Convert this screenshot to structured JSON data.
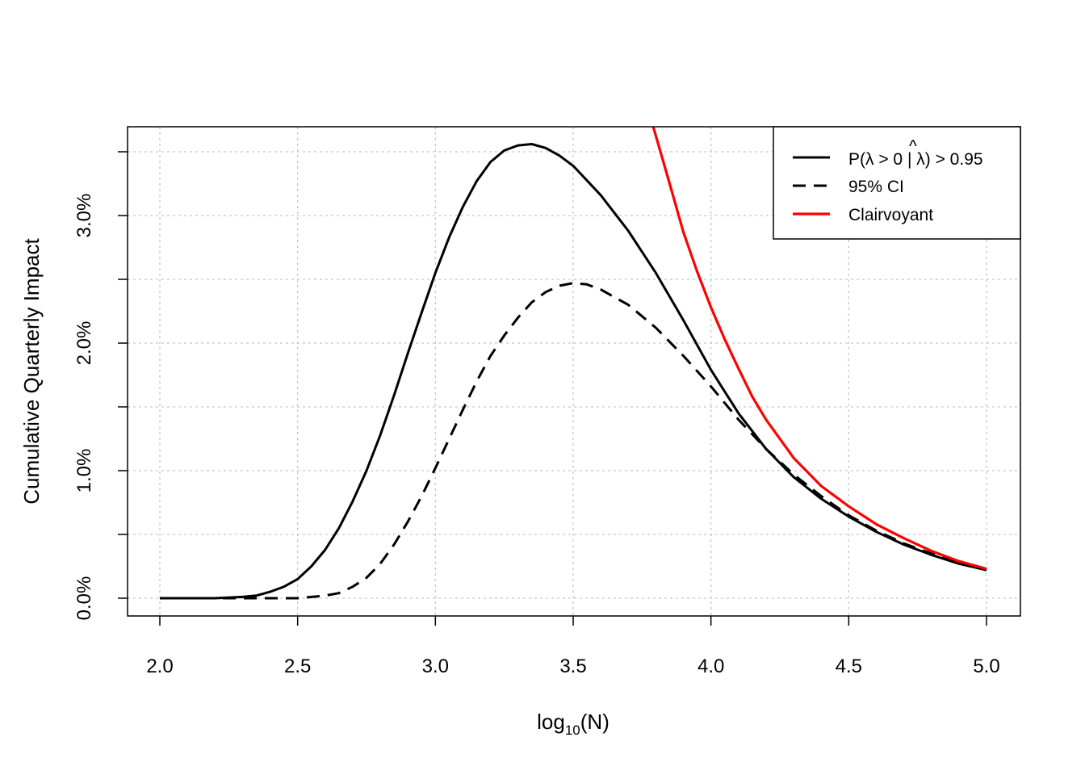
{
  "chart_data": {
    "type": "line",
    "title": "",
    "xlabel": {
      "base": "log",
      "sub": "10",
      "rest": "(N)"
    },
    "ylabel": "Cumulative Quarterly Impact",
    "xlim": [
      2.0,
      5.0
    ],
    "ylim": [
      -0.13,
      3.7
    ],
    "xticks": [
      2.0,
      2.5,
      3.0,
      3.5,
      4.0,
      4.5,
      5.0
    ],
    "xtick_labels": [
      "2.0",
      "2.5",
      "3.0",
      "3.5",
      "4.0",
      "4.5",
      "5.0"
    ],
    "yticks": [
      0.0,
      0.5,
      1.0,
      1.5,
      2.0,
      2.5,
      3.0,
      3.5
    ],
    "ytick_labels": [
      "0.0%",
      "",
      "1.0%",
      "",
      "2.0%",
      "",
      "3.0%",
      ""
    ],
    "grid": true,
    "legend_position": "top-right",
    "series": [
      {
        "name": "P(λ > 0 | λ̂) > 0.95",
        "legend": {
          "pre": "P(λ > 0 | ",
          "hat": "λ",
          "post": ") > 0.95"
        },
        "style": "solid",
        "color": "#000000",
        "x": [
          2.0,
          2.1,
          2.2,
          2.3,
          2.35,
          2.4,
          2.45,
          2.5,
          2.55,
          2.6,
          2.65,
          2.7,
          2.75,
          2.8,
          2.85,
          2.9,
          2.95,
          3.0,
          3.05,
          3.1,
          3.15,
          3.2,
          3.25,
          3.3,
          3.35,
          3.4,
          3.45,
          3.5,
          3.6,
          3.7,
          3.8,
          3.9,
          4.0,
          4.1,
          4.2,
          4.3,
          4.4,
          4.5,
          4.6,
          4.7,
          4.8,
          4.9,
          5.0
        ],
        "values": [
          0.0,
          0.0,
          0.0,
          0.01,
          0.02,
          0.05,
          0.09,
          0.15,
          0.25,
          0.38,
          0.55,
          0.76,
          1.0,
          1.28,
          1.59,
          1.92,
          2.24,
          2.55,
          2.83,
          3.07,
          3.27,
          3.42,
          3.51,
          3.55,
          3.56,
          3.53,
          3.47,
          3.39,
          3.16,
          2.88,
          2.55,
          2.18,
          1.79,
          1.45,
          1.17,
          0.95,
          0.78,
          0.64,
          0.52,
          0.42,
          0.34,
          0.27,
          0.22
        ]
      },
      {
        "name": "95% CI",
        "style": "dashed",
        "color": "#000000",
        "x": [
          2.0,
          2.2,
          2.4,
          2.5,
          2.6,
          2.65,
          2.7,
          2.75,
          2.8,
          2.85,
          2.9,
          2.95,
          3.0,
          3.05,
          3.1,
          3.15,
          3.2,
          3.25,
          3.3,
          3.35,
          3.4,
          3.45,
          3.5,
          3.55,
          3.6,
          3.7,
          3.8,
          3.9,
          4.0,
          4.1,
          4.2,
          4.3,
          4.4,
          4.5,
          4.6,
          4.7,
          4.8,
          4.9,
          5.0
        ],
        "values": [
          0.0,
          0.0,
          0.0,
          0.0,
          0.02,
          0.04,
          0.09,
          0.16,
          0.27,
          0.42,
          0.6,
          0.8,
          1.02,
          1.25,
          1.48,
          1.7,
          1.9,
          2.06,
          2.2,
          2.32,
          2.4,
          2.45,
          2.47,
          2.46,
          2.42,
          2.3,
          2.12,
          1.9,
          1.66,
          1.4,
          1.17,
          0.97,
          0.8,
          0.65,
          0.53,
          0.43,
          0.35,
          0.28,
          0.22
        ]
      },
      {
        "name": "Clairvoyant",
        "style": "solid",
        "color": "#ff0000",
        "x": [
          3.79,
          3.85,
          3.9,
          3.95,
          4.0,
          4.05,
          4.1,
          4.15,
          4.2,
          4.3,
          4.4,
          4.5,
          4.6,
          4.7,
          4.8,
          4.9,
          5.0
        ],
        "values": [
          3.7,
          3.25,
          2.87,
          2.56,
          2.28,
          2.03,
          1.8,
          1.58,
          1.4,
          1.1,
          0.88,
          0.72,
          0.58,
          0.47,
          0.37,
          0.29,
          0.23
        ]
      }
    ]
  }
}
